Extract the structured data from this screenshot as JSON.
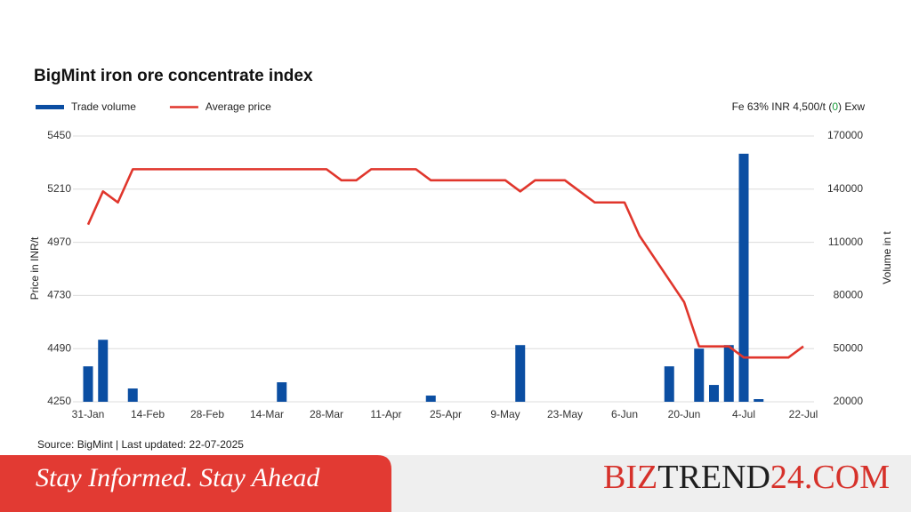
{
  "chart_data": {
    "type": "combo",
    "title": "BigMint iron ore concentrate index",
    "annotation": {
      "prefix": "Fe 63%  INR 4,500/t (",
      "change": "0",
      "suffix": ") Exw"
    },
    "y_label": "Price in INR/t",
    "y2_label": "Volume in t",
    "source": "Source: BigMint | Last updated: 22-07-2025",
    "categories": [
      "31-Jan",
      null,
      null,
      null,
      "14-Feb",
      null,
      null,
      null,
      "28-Feb",
      null,
      null,
      null,
      "14-Mar",
      null,
      null,
      null,
      "28-Mar",
      null,
      null,
      null,
      "11-Apr",
      null,
      null,
      null,
      "25-Apr",
      null,
      null,
      null,
      "9-May",
      null,
      null,
      null,
      "23-May",
      null,
      null,
      null,
      "6-Jun",
      null,
      null,
      null,
      "20-Jun",
      null,
      null,
      null,
      "4-Jul",
      null,
      null,
      null,
      "22-Jul"
    ],
    "series": [
      {
        "name": "Trade volume",
        "type": "bar",
        "axis": "y2",
        "color": "#0b4ea2",
        "values": [
          40000,
          55000,
          null,
          27500,
          null,
          null,
          null,
          null,
          null,
          null,
          null,
          null,
          null,
          31000,
          null,
          null,
          null,
          null,
          null,
          null,
          null,
          null,
          null,
          23500,
          null,
          null,
          null,
          null,
          null,
          52000,
          null,
          null,
          null,
          null,
          null,
          null,
          null,
          null,
          null,
          40000,
          null,
          50000,
          29500,
          52000,
          160000,
          21500,
          null,
          null,
          null
        ]
      },
      {
        "name": "Average price",
        "type": "line",
        "color": "#e0362c",
        "values": [
          5050,
          5200,
          5150,
          5300,
          5300,
          5300,
          5300,
          5300,
          5300,
          5300,
          5300,
          5300,
          5300,
          5300,
          5300,
          5300,
          5300,
          5250,
          5250,
          5300,
          5300,
          5300,
          5300,
          5250,
          5250,
          5250,
          5250,
          5250,
          5250,
          5200,
          5250,
          5250,
          5250,
          5200,
          5150,
          5150,
          5150,
          5000,
          4900,
          4800,
          4700,
          4500,
          4500,
          4500,
          4450,
          4450,
          4450,
          4450,
          4500
        ]
      }
    ],
    "ylim": [
      4250,
      5450
    ],
    "yticks": [
      4250,
      4490,
      4730,
      4970,
      5210,
      5450
    ],
    "y2lim": [
      20000,
      170000
    ],
    "y2ticks": [
      20000,
      50000,
      80000,
      110000,
      140000,
      170000
    ],
    "grid": true,
    "legend": "top-left"
  },
  "banner": {
    "tagline": "Stay Informed. Stay Ahead",
    "brand": {
      "part1": "BIZ",
      "part2": "TREND",
      "part3": "24.COM"
    }
  }
}
